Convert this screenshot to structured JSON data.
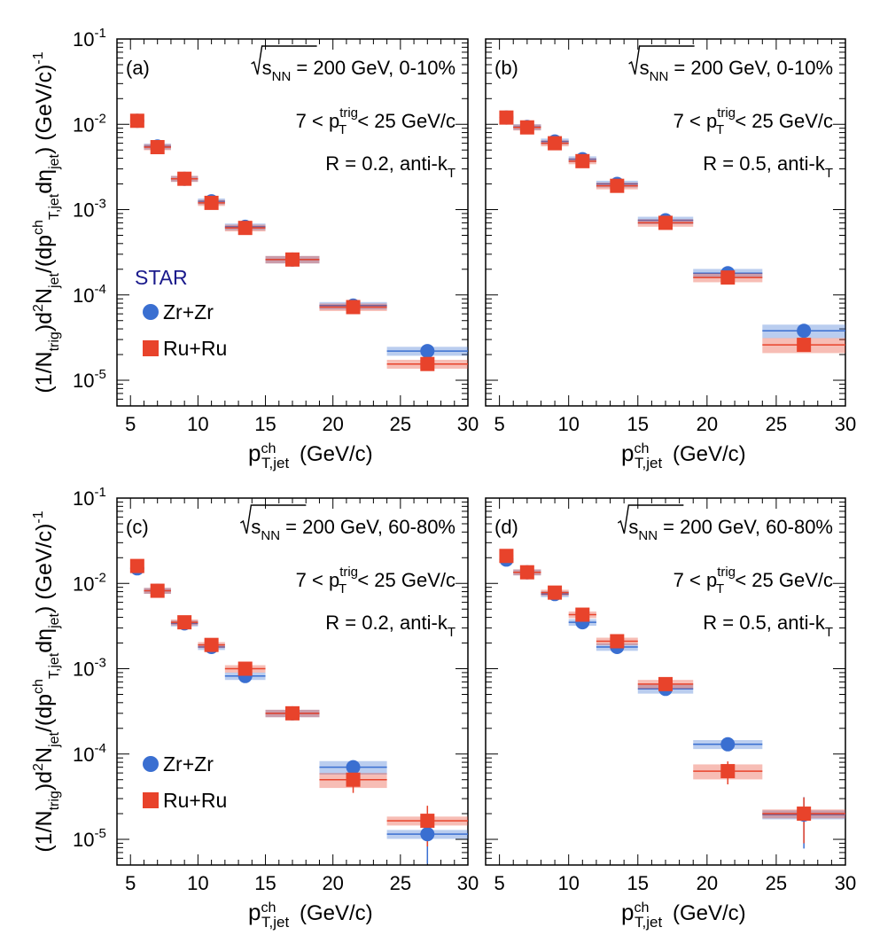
{
  "colors": {
    "zr": "#3a6fd1",
    "ru": "#e8432b",
    "star": "#1a1a8c"
  },
  "figure": {
    "star_label": "STAR",
    "x_ticks": [
      "5",
      "10",
      "15",
      "20",
      "25",
      "30"
    ],
    "y_ticks": [
      {
        "base": "10",
        "exp": "-1"
      },
      {
        "base": "10",
        "exp": "-2"
      },
      {
        "base": "10",
        "exp": "-3"
      },
      {
        "base": "10",
        "exp": "-4"
      },
      {
        "base": "10",
        "exp": "-5"
      }
    ],
    "xlabel": {
      "main": "p",
      "sup": "ch",
      "sub": "T,jet",
      "unit": "(GeV/c)"
    },
    "ylabel": {
      "p1": "(1/N",
      "s1": "trig",
      "p2": ")d",
      "e1": "2",
      "p3": "N",
      "s2": "jet",
      "p4": "/(dp",
      "e2": "ch",
      "s3": "T,jet",
      "p5": "dη",
      "s4": "jet",
      "p6": ") (GeV/c)",
      "e3": "-1"
    },
    "text": {
      "sqrt_s": "s",
      "sqrt_sub": "NN",
      "eq": " = 200 GeV, ",
      "trig_pre": "7 < p",
      "trig_sup": "trig",
      "trig_sub": "T",
      "trig_post": " < 25 GeV/c",
      "anti": ", anti-k",
      "anti_sub": "T"
    }
  },
  "chart_data": [
    {
      "type": "scatter",
      "panel": "(a)",
      "centrality": "0-10%",
      "radius": "R = 0.2",
      "xlim": [
        4,
        30
      ],
      "ylim": [
        5e-06,
        0.1
      ],
      "yscale": "log",
      "series": [
        {
          "name": "Zr+Zr",
          "marker": "circle",
          "x": [
            5.5,
            7,
            9,
            11,
            13.5,
            17,
            21.5,
            27
          ],
          "xerr": [
            0.5,
            1,
            1,
            1,
            1.5,
            2,
            2.5,
            3
          ],
          "y": [
            0.011,
            0.0055,
            0.0023,
            0.00125,
            0.00063,
            0.00026,
            7.5e-05,
            2.2e-05
          ],
          "sys": [
            0.08,
            0.08,
            0.08,
            0.08,
            0.09,
            0.1,
            0.1,
            0.12
          ]
        },
        {
          "name": "Ru+Ru",
          "marker": "square",
          "x": [
            5.5,
            7,
            9,
            11,
            13.5,
            17,
            21.5,
            27
          ],
          "xerr": [
            0.5,
            1,
            1,
            1,
            1.5,
            2,
            2.5,
            3
          ],
          "y": [
            0.011,
            0.0054,
            0.0023,
            0.0012,
            0.00061,
            0.00026,
            7.2e-05,
            1.55e-05
          ],
          "sys": [
            0.08,
            0.08,
            0.08,
            0.08,
            0.09,
            0.1,
            0.1,
            0.12
          ]
        }
      ]
    },
    {
      "type": "scatter",
      "panel": "(b)",
      "centrality": "0-10%",
      "radius": "R = 0.5",
      "xlim": [
        4,
        30
      ],
      "ylim": [
        5e-06,
        0.1
      ],
      "yscale": "log",
      "series": [
        {
          "name": "Zr+Zr",
          "marker": "circle",
          "x": [
            5.5,
            7,
            9,
            11,
            13.5,
            17,
            21.5,
            27
          ],
          "xerr": [
            0.5,
            1,
            1,
            1,
            1.5,
            2,
            2.5,
            3
          ],
          "y": [
            0.012,
            0.0093,
            0.0063,
            0.0039,
            0.002,
            0.00075,
            0.00018,
            3.8e-05
          ],
          "sys": [
            0.08,
            0.08,
            0.08,
            0.08,
            0.09,
            0.1,
            0.12,
            0.18
          ]
        },
        {
          "name": "Ru+Ru",
          "marker": "square",
          "x": [
            5.5,
            7,
            9,
            11,
            13.5,
            17,
            21.5,
            27
          ],
          "xerr": [
            0.5,
            1,
            1,
            1,
            1.5,
            2,
            2.5,
            3
          ],
          "y": [
            0.012,
            0.0092,
            0.006,
            0.0037,
            0.0019,
            0.0007,
            0.00016,
            2.6e-05
          ],
          "sys": [
            0.08,
            0.08,
            0.08,
            0.08,
            0.09,
            0.1,
            0.12,
            0.2
          ]
        }
      ]
    },
    {
      "type": "scatter",
      "panel": "(c)",
      "centrality": "60-80%",
      "radius": "R = 0.2",
      "xlim": [
        4,
        30
      ],
      "ylim": [
        5e-06,
        0.1
      ],
      "yscale": "log",
      "series": [
        {
          "name": "Zr+Zr",
          "marker": "circle",
          "x": [
            5.5,
            7,
            9,
            11,
            13.5,
            17,
            21.5,
            27
          ],
          "xerr": [
            0.5,
            1,
            1,
            1,
            1.5,
            2,
            2.5,
            3
          ],
          "y": [
            0.015,
            0.0082,
            0.0034,
            0.0018,
            0.00082,
            0.0003,
            7e-05,
            1.15e-05
          ],
          "sys": [
            0.08,
            0.08,
            0.08,
            0.08,
            0.1,
            0.1,
            0.18,
            0.12
          ],
          "stat": [
            0,
            0,
            0,
            0,
            0,
            0,
            0,
            0.55
          ]
        },
        {
          "name": "Ru+Ru",
          "marker": "square",
          "x": [
            5.5,
            7,
            9,
            11,
            13.5,
            17,
            21.5,
            27
          ],
          "xerr": [
            0.5,
            1,
            1,
            1,
            1.5,
            2,
            2.5,
            3
          ],
          "y": [
            0.016,
            0.0082,
            0.0035,
            0.0019,
            0.001,
            0.0003,
            5e-05,
            1.65e-05
          ],
          "sys": [
            0.08,
            0.08,
            0.08,
            0.08,
            0.1,
            0.1,
            0.2,
            0.12
          ],
          "stat": [
            0,
            0,
            0,
            0,
            0,
            0,
            0.3,
            0.5
          ]
        }
      ]
    },
    {
      "type": "scatter",
      "panel": "(d)",
      "centrality": "60-80%",
      "radius": "R = 0.5",
      "xlim": [
        4,
        30
      ],
      "ylim": [
        5e-06,
        0.1
      ],
      "yscale": "log",
      "series": [
        {
          "name": "Zr+Zr",
          "marker": "circle",
          "x": [
            5.5,
            7,
            9,
            11,
            13.5,
            17,
            21.5,
            27
          ],
          "xerr": [
            0.5,
            1,
            1,
            1,
            1.5,
            2,
            2.5,
            3
          ],
          "y": [
            0.019,
            0.0135,
            0.0075,
            0.0035,
            0.0018,
            0.00058,
            0.00013,
            1.95e-05
          ],
          "sys": [
            0.08,
            0.08,
            0.08,
            0.09,
            0.1,
            0.12,
            0.12,
            0.12
          ],
          "stat": [
            0,
            0,
            0,
            0,
            0,
            0,
            0.1,
            0.6
          ]
        },
        {
          "name": "Ru+Ru",
          "marker": "square",
          "x": [
            5.5,
            7,
            9,
            11,
            13.5,
            17,
            21.5,
            27
          ],
          "xerr": [
            0.5,
            1,
            1,
            1,
            1.5,
            2,
            2.5,
            3
          ],
          "y": [
            0.021,
            0.0135,
            0.0078,
            0.0043,
            0.0021,
            0.00066,
            6.3e-05,
            2e-05
          ],
          "sys": [
            0.08,
            0.08,
            0.08,
            0.09,
            0.1,
            0.12,
            0.2,
            0.12
          ],
          "stat": [
            0,
            0,
            0,
            0,
            0,
            0,
            0.3,
            0.55
          ]
        }
      ]
    }
  ]
}
